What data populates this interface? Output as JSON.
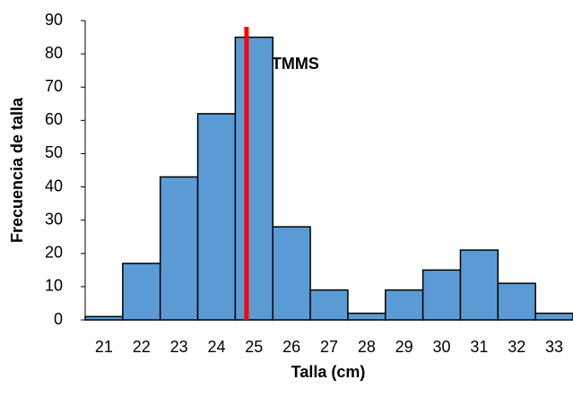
{
  "chart_data": {
    "type": "bar",
    "xlabel": "Talla (cm)",
    "ylabel": "Frecuencia de talla",
    "categories": [
      21,
      22,
      23,
      24,
      25,
      26,
      27,
      28,
      29,
      30,
      31,
      32,
      33
    ],
    "values": [
      1,
      17,
      43,
      62,
      85,
      28,
      9,
      2,
      9,
      15,
      21,
      11,
      2
    ],
    "color": "#5b9bd5",
    "ylim": [
      0,
      90
    ],
    "yticks": [
      0,
      10,
      20,
      30,
      40,
      50,
      60,
      70,
      80,
      90
    ],
    "reference_line": {
      "x": 24.8,
      "label": "TMMS",
      "color": "#ff0000"
    }
  }
}
